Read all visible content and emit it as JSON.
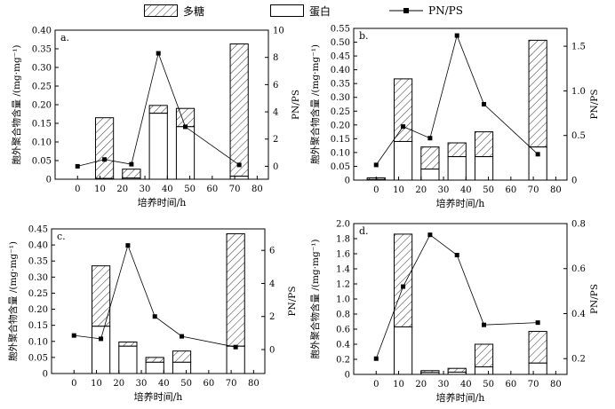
{
  "legend": {
    "polysaccharide": "多糖",
    "protein": "蛋白",
    "ratio": "PN/PS"
  },
  "colors": {
    "ink": "#000000",
    "background": "#ffffff"
  },
  "chart_data": [
    {
      "type": "bar",
      "panel_label": "a.",
      "xlabel": "培养时间/h",
      "ylabel": "胞外聚合物含量 /(mg·mg⁻¹)",
      "y2label": "PN/PS",
      "xlim": [
        -10,
        85
      ],
      "xticks": [
        "0",
        "10",
        "20",
        "30",
        "40",
        "50",
        "60",
        "70",
        "80"
      ],
      "ylim": [
        0,
        0.4
      ],
      "yticks": [
        "0",
        "0.05",
        "0.10",
        "0.15",
        "0.20",
        "0.25",
        "0.30",
        "0.35",
        "0.40"
      ],
      "y2lim": [
        -0.95,
        10
      ],
      "y2ticks": [
        "0",
        "2",
        "4",
        "6",
        "8",
        "10"
      ],
      "x": [
        12,
        24,
        36,
        48,
        72
      ],
      "series": [
        {
          "name": "蛋白",
          "values": [
            0.002,
            0.003,
            0.177,
            0.141,
            0.008
          ]
        },
        {
          "name": "多糖",
          "values": [
            0.163,
            0.024,
            0.021,
            0.049,
            0.355
          ]
        }
      ],
      "ratio": {
        "x": [
          0,
          12,
          24,
          36,
          48,
          72
        ],
        "values": [
          0.0,
          0.5,
          0.15,
          8.3,
          2.9,
          0.1
        ]
      }
    },
    {
      "type": "bar",
      "panel_label": "b.",
      "xlabel": "培养时间/h",
      "ylabel": "胞外聚合物含量 /(mg·mg⁻¹)",
      "y2label": "PN/PS",
      "xlim": [
        -10,
        85
      ],
      "xticks": [
        "0",
        "10",
        "20",
        "30",
        "40",
        "50",
        "60",
        "70",
        "80"
      ],
      "ylim": [
        0,
        0.55
      ],
      "yticks": [
        "0",
        "0.05",
        "0.10",
        "0.15",
        "0.20",
        "0.25",
        "0.30",
        "0.35",
        "0.40",
        "0.45",
        "0.50",
        "0.55"
      ],
      "y2lim": [
        0,
        1.7
      ],
      "y2ticks": [
        "0",
        "0.5",
        "1.0",
        "1.5"
      ],
      "x": [
        0,
        12,
        24,
        36,
        48,
        72
      ],
      "series": [
        {
          "name": "蛋白",
          "values": [
            0.002,
            0.14,
            0.04,
            0.085,
            0.085,
            0.12
          ]
        },
        {
          "name": "多糖",
          "values": [
            0.006,
            0.227,
            0.08,
            0.05,
            0.09,
            0.387
          ]
        }
      ],
      "ratio": {
        "x": [
          0,
          12,
          24,
          36,
          48,
          72
        ],
        "values": [
          0.17,
          0.6,
          0.47,
          1.62,
          0.85,
          0.29
        ]
      }
    },
    {
      "type": "bar",
      "panel_label": "c.",
      "xlabel": "培养时间/h",
      "ylabel": "胞外聚合物含量 /(mg·mg⁻¹)",
      "y2label": "PN/PS",
      "xlim": [
        -10,
        85
      ],
      "xticks": [
        "0",
        "10",
        "20",
        "30",
        "40",
        "50",
        "60",
        "70",
        "80"
      ],
      "ylim": [
        0,
        0.45
      ],
      "yticks": [
        "0",
        "0.05",
        "0.10",
        "0.15",
        "0.20",
        "0.25",
        "0.30",
        "0.35",
        "0.40",
        "0.45"
      ],
      "y2lim": [
        -1.45,
        7.3
      ],
      "y2ticks": [
        "0",
        "2",
        "4",
        "6"
      ],
      "x": [
        12,
        24,
        36,
        48,
        72
      ],
      "series": [
        {
          "name": "蛋白",
          "values": [
            0.147,
            0.085,
            0.035,
            0.035,
            0.085
          ]
        },
        {
          "name": "多糖",
          "values": [
            0.188,
            0.013,
            0.015,
            0.035,
            0.35
          ]
        }
      ],
      "ratio": {
        "x": [
          0,
          12,
          24,
          36,
          48,
          72
        ],
        "values": [
          0.85,
          0.65,
          6.3,
          2.0,
          0.8,
          0.15
        ]
      }
    },
    {
      "type": "bar",
      "panel_label": "d.",
      "xlabel": "培养时间/h",
      "ylabel": "胞外聚合物含量 /(mg·mg⁻¹)",
      "y2label": "PN/PS",
      "xlim": [
        -10,
        85
      ],
      "xticks": [
        "0",
        "10",
        "20",
        "30",
        "40",
        "50",
        "60",
        "70",
        "80"
      ],
      "ylim": [
        0,
        2.0
      ],
      "yticks": [
        "0",
        "0.2",
        "0.4",
        "0.6",
        "0.8",
        "1.0",
        "1.2",
        "1.4",
        "1.6",
        "1.8",
        "2.0"
      ],
      "y2lim": [
        0.13,
        0.8
      ],
      "y2ticks": [
        "0.2",
        "0.4",
        "0.6",
        "0.8"
      ],
      "x": [
        12,
        24,
        36,
        48,
        72
      ],
      "series": [
        {
          "name": "蛋白",
          "values": [
            0.63,
            0.025,
            0.03,
            0.1,
            0.15
          ]
        },
        {
          "name": "多糖",
          "values": [
            1.23,
            0.025,
            0.05,
            0.3,
            0.42
          ]
        }
      ],
      "ratio": {
        "x": [
          0,
          12,
          24,
          36,
          48,
          72
        ],
        "values": [
          0.2,
          0.52,
          0.75,
          0.66,
          0.35,
          0.36
        ]
      }
    }
  ]
}
